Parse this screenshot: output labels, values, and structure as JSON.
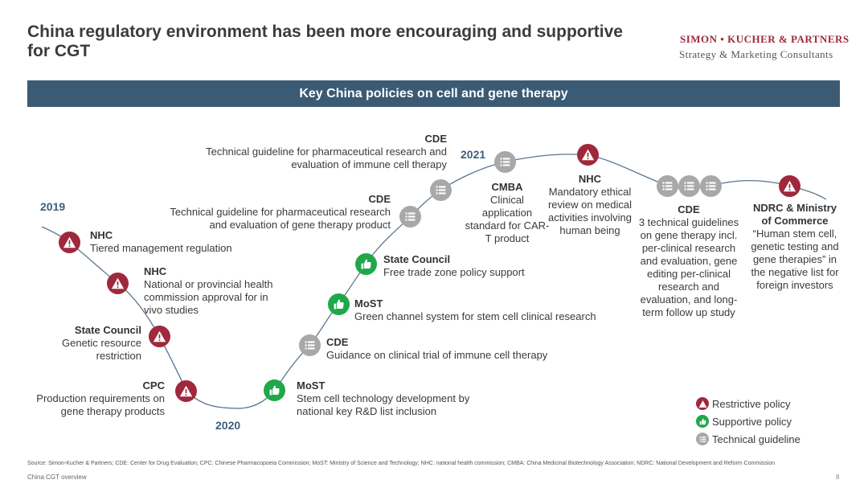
{
  "title": "China regulatory environment has been more encouraging and supportive for CGT",
  "brand": {
    "name": "SIMON • KUCHER & PARTNERS",
    "tagline": "Strategy & Marketing Consultants"
  },
  "banner": "Key China policies on cell and gene therapy",
  "years": {
    "y2019": "2019",
    "y2020": "2020",
    "y2021": "2021"
  },
  "events": [
    {
      "org": "NHC",
      "text": "Tiered management regulation",
      "icon": "restrictive-icon"
    },
    {
      "org": "NHC",
      "text": "National or provincial health commission approval for in vivo studies",
      "icon": "restrictive-icon"
    },
    {
      "org": "State Council",
      "text": "Genetic resource restriction",
      "icon": "restrictive-icon"
    },
    {
      "org": "CPC",
      "text": "Production requirements on gene therapy products",
      "icon": "restrictive-icon"
    },
    {
      "org": "MoST",
      "text": "Stem cell technology development by national key R&D list inclusion",
      "icon": "supportive-icon"
    },
    {
      "org": "CDE",
      "text": "Guidance on clinical trial of immune cell therapy",
      "icon": "guideline-icon"
    },
    {
      "org": "MoST",
      "text": "Green channel system for stem cell clinical research",
      "icon": "supportive-icon"
    },
    {
      "org": "State Council",
      "text": "Free trade zone policy support",
      "icon": "supportive-icon"
    },
    {
      "org": "CDE",
      "text": "Technical guideline for pharmaceutical research and evaluation of gene therapy product",
      "icon": "guideline-icon"
    },
    {
      "org": "CDE",
      "text": "Technical guideline for pharmaceutical research and evaluation of immune cell therapy",
      "icon": "guideline-icon"
    },
    {
      "org": "CMBA",
      "text": "Clinical application standard for CAR-T product",
      "icon": "guideline-icon"
    },
    {
      "org": "NHC",
      "text": "Mandatory ethical review on medical activities involving human being",
      "icon": "restrictive-icon"
    },
    {
      "org": "CDE",
      "text": "3 technical guidelines on gene therapy incl. per-clinical research and evaluation, gene editing per-clinical research and evaluation, and long-term follow up study",
      "icon": "guideline-icon"
    },
    {
      "org": "NDRC & Ministry of Commerce",
      "text": "“Human stem cell, genetic testing and gene therapies” in the negative list for foreign investors",
      "icon": "restrictive-icon"
    }
  ],
  "legend": {
    "restrictive": "Restrictive policy",
    "supportive": "Supportive policy",
    "guideline": "Technical guideline"
  },
  "colors": {
    "restrictive": "#a0283c",
    "supportive": "#1ea84a",
    "guideline": "#a8a8a8",
    "banner": "#3b5a73",
    "line": "#5b7590"
  },
  "footnote": "Source: Simon-Kucher & Partners; CDE: Center for Drug Evaluation; CPC: Chinese Pharmacopoeia Commission; MoST: Ministry of Science and Technology; NHC: national health commission; CMBA: China Medicinal Biotechnology Association; NDRC: National Development and Reform Commission",
  "footer": "China CGT overview",
  "page_number": "8"
}
